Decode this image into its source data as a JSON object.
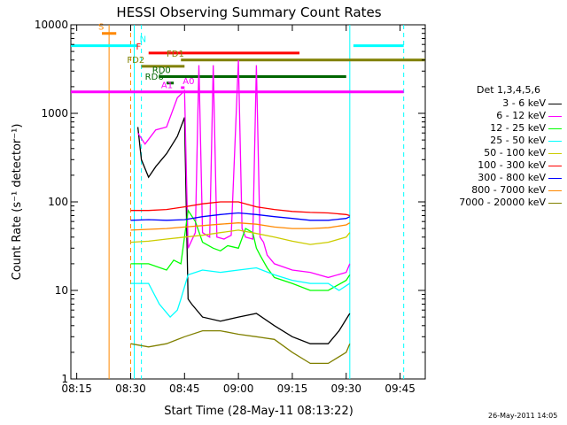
{
  "chart_data": {
    "type": "line",
    "title": "HESSI Observing Summary Count Rates",
    "xlabel": "Start Time (28-May-11 08:13:22)",
    "ylabel": "Count Rate (s⁻¹ detector⁻¹)",
    "y_scale": "log",
    "ylim": [
      1,
      10000
    ],
    "xlim": [
      "08:13:22",
      "09:52:00"
    ],
    "x_ticks": [
      "08:15",
      "08:30",
      "08:45",
      "09:00",
      "09:15",
      "09:30",
      "09:45"
    ],
    "y_ticks": [
      "1",
      "10",
      "100",
      "1000",
      "10000"
    ],
    "legend_title": "Det 1,3,4,5,6",
    "legend_placement": "right",
    "series": [
      {
        "name": "3 - 6 keV",
        "color": "#000000",
        "x": [
          "08:32",
          "08:33",
          "08:35",
          "08:37",
          "08:40",
          "08:43",
          "08:45",
          "08:46",
          "08:47",
          "08:50",
          "08:55",
          "09:00",
          "09:05",
          "09:10",
          "09:15",
          "09:20",
          "09:25",
          "09:28",
          "09:31"
        ],
        "values": [
          700,
          300,
          190,
          250,
          350,
          550,
          900,
          8,
          7,
          5,
          4.5,
          5,
          5.5,
          4,
          3,
          2.5,
          2.5,
          3.5,
          5.5
        ]
      },
      {
        "name": "6 - 12 keV",
        "color": "#ff00ff",
        "x": [
          "08:32",
          "08:34",
          "08:37",
          "08:40",
          "08:43",
          "08:45",
          "08:46",
          "08:48",
          "08:49",
          "08:50",
          "08:52",
          "08:53",
          "08:54",
          "08:56",
          "08:58",
          "09:00",
          "09:01",
          "09:02",
          "09:04",
          "09:05",
          "09:06",
          "09:07",
          "09:08",
          "09:10",
          "09:15",
          "09:20",
          "09:25",
          "09:30",
          "09:31"
        ],
        "values": [
          600,
          450,
          650,
          700,
          1500,
          1800,
          30,
          45,
          3500,
          45,
          40,
          3500,
          40,
          38,
          42,
          4000,
          50,
          40,
          38,
          3500,
          40,
          35,
          25,
          20,
          17,
          16,
          14,
          16,
          20
        ]
      },
      {
        "name": "12 - 25 keV",
        "color": "#00ff00",
        "x": [
          "08:30",
          "08:35",
          "08:40",
          "08:42",
          "08:44",
          "08:46",
          "08:48",
          "08:50",
          "08:53",
          "08:55",
          "08:57",
          "09:00",
          "09:02",
          "09:04",
          "09:05",
          "09:06",
          "09:08",
          "09:10",
          "09:15",
          "09:20",
          "09:25",
          "09:30",
          "09:31"
        ],
        "values": [
          20,
          20,
          17,
          22,
          20,
          80,
          60,
          35,
          30,
          28,
          32,
          30,
          50,
          45,
          30,
          25,
          18,
          14,
          12,
          10,
          10,
          13,
          15
        ]
      },
      {
        "name": "25 - 50 keV",
        "color": "#00ffff",
        "x": [
          "08:30",
          "08:35",
          "08:38",
          "08:41",
          "08:43",
          "08:44",
          "08:46",
          "08:50",
          "08:55",
          "09:00",
          "09:05",
          "09:10",
          "09:15",
          "09:20",
          "09:25",
          "09:28",
          "09:31"
        ],
        "values": [
          12,
          12,
          7,
          5,
          6,
          8,
          15,
          17,
          16,
          17,
          18,
          15,
          13,
          12,
          12,
          10,
          12
        ]
      },
      {
        "name": "50 - 100 keV",
        "color": "#cccc00",
        "x": [
          "08:30",
          "08:35",
          "08:40",
          "08:45",
          "08:50",
          "08:55",
          "09:00",
          "09:05",
          "09:10",
          "09:15",
          "09:20",
          "09:25",
          "09:30",
          "09:31"
        ],
        "values": [
          35,
          36,
          38,
          40,
          42,
          45,
          48,
          44,
          40,
          36,
          33,
          35,
          40,
          45
        ]
      },
      {
        "name": "100 - 300 keV",
        "color": "#ff0000",
        "x": [
          "08:30",
          "08:35",
          "08:40",
          "08:45",
          "08:50",
          "08:55",
          "09:00",
          "09:05",
          "09:10",
          "09:15",
          "09:20",
          "09:25",
          "09:30",
          "09:31"
        ],
        "values": [
          80,
          80,
          82,
          88,
          95,
          100,
          100,
          88,
          82,
          78,
          76,
          75,
          72,
          70
        ]
      },
      {
        "name": "300 - 800 keV",
        "color": "#0000ff",
        "x": [
          "08:30",
          "08:35",
          "08:40",
          "08:45",
          "08:50",
          "08:55",
          "09:00",
          "09:05",
          "09:10",
          "09:15",
          "09:20",
          "09:25",
          "09:30",
          "09:31"
        ],
        "values": [
          62,
          63,
          62,
          63,
          68,
          72,
          75,
          72,
          68,
          65,
          62,
          62,
          65,
          68
        ]
      },
      {
        "name": "800 - 7000 keV",
        "color": "#ff8800",
        "x": [
          "08:30",
          "08:35",
          "08:40",
          "08:45",
          "08:50",
          "08:55",
          "09:00",
          "09:05",
          "09:10",
          "09:15",
          "09:20",
          "09:25",
          "09:30",
          "09:31"
        ],
        "values": [
          48,
          49,
          50,
          52,
          54,
          56,
          58,
          56,
          52,
          50,
          50,
          51,
          55,
          58
        ]
      },
      {
        "name": "7000 - 20000 keV",
        "color": "#808000",
        "x": [
          "08:30",
          "08:35",
          "08:40",
          "08:45",
          "08:50",
          "08:55",
          "09:00",
          "09:05",
          "09:10",
          "09:15",
          "09:20",
          "09:25",
          "09:30",
          "09:31"
        ],
        "values": [
          2.5,
          2.3,
          2.5,
          3,
          3.5,
          3.5,
          3.2,
          3,
          2.8,
          2,
          1.5,
          1.5,
          2,
          2.5
        ]
      }
    ],
    "flag_bars": [
      {
        "label": "S",
        "color": "#ff8800",
        "y": 8000,
        "x0": "08:22",
        "x1": "08:26",
        "label_x": "08:21"
      },
      {
        "label": "N",
        "color": "#00ffff",
        "y": 5800,
        "segments": [
          [
            "08:13:22",
            "08:32"
          ],
          [
            "09:32",
            "09:46"
          ]
        ],
        "label_x": "08:32:30"
      },
      {
        "label": "F",
        "color": "#ff0000",
        "y": 4800,
        "x0": "08:35",
        "x1": "09:17",
        "label_x": "08:31:30"
      },
      {
        "label": "FD1",
        "color": "#808000",
        "y": 4000,
        "x0": "08:44",
        "x1": "09:52",
        "label_x": "08:40"
      },
      {
        "label": "FD2",
        "color": "#808000",
        "y": 3400,
        "x0": "08:33",
        "x1": "08:45",
        "label_x": "08:29"
      },
      {
        "label": "RD0",
        "color": "#006600",
        "y": 2600,
        "x0": "08:38",
        "x1": "09:30",
        "label_x": "08:36"
      },
      {
        "label": "RD6",
        "color": "#006600",
        "y": 2200,
        "x0": "08:40",
        "x1": "08:42",
        "label_x": "08:34"
      },
      {
        "label": "A1",
        "color": "#ff00ff",
        "y": 1750,
        "x0": "08:13:22",
        "x1": "09:46",
        "label_x": "08:38:30"
      },
      {
        "label": "A0",
        "color": "#ff00ff",
        "y": 1950,
        "x0": "08:44",
        "x1": "08:45",
        "label_x": "08:44:30"
      }
    ],
    "vertical_lines": [
      {
        "color": "#ff8800",
        "x": "08:24",
        "style": "solid"
      },
      {
        "color": "#ff8800",
        "x": "08:30",
        "style": "dashed"
      },
      {
        "color": "#00ffff",
        "x": "08:31",
        "style": "solid"
      },
      {
        "color": "#00ffff",
        "x": "08:33",
        "style": "dashed"
      },
      {
        "color": "#00ffff",
        "x": "09:31",
        "style": "solid"
      },
      {
        "color": "#00ffff",
        "x": "09:46",
        "style": "dashed"
      }
    ]
  },
  "footer": {
    "timestamp": "26-May-2011 14:05"
  }
}
